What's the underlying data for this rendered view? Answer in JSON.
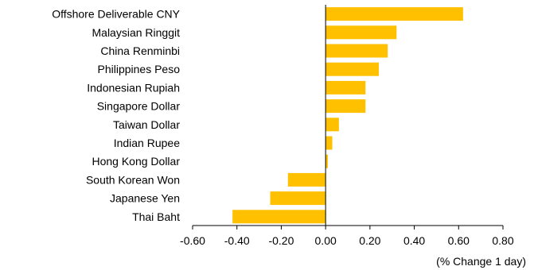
{
  "chart_data": {
    "type": "bar",
    "orientation": "horizontal",
    "categories": [
      "Offshore Deliverable CNY",
      "Malaysian Ringgit",
      "China Renminbi",
      "Philippines Peso",
      "Indonesian Rupiah",
      "Singapore Dollar",
      "Taiwan Dollar",
      "Indian Rupee",
      "Hong Kong Dollar",
      "South Korean Won",
      "Japanese Yen",
      "Thai Baht"
    ],
    "values": [
      0.62,
      0.32,
      0.28,
      0.24,
      0.18,
      0.18,
      0.06,
      0.03,
      0.01,
      -0.17,
      -0.25,
      -0.42
    ],
    "xlim": [
      -0.6,
      0.8
    ],
    "xticks": [
      "-0.60",
      "-0.40",
      "-0.20",
      "0.00",
      "0.20",
      "0.40",
      "0.60",
      "0.80"
    ],
    "xlabel": "(% Change 1 day)",
    "bar_color": "#FFC000",
    "grid": false
  }
}
